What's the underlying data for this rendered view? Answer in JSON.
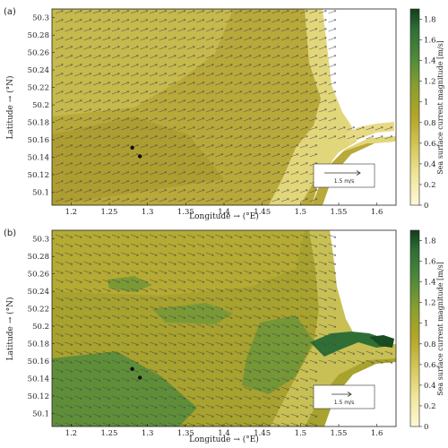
{
  "chart_data": [
    {
      "type": "heatmap",
      "panel_label": "(a)",
      "title": "",
      "xlabel": "Longitude → (°E)",
      "ylabel": "Latitude → (°N)",
      "colorbar_label": "Sea surface current magnitude [m/s]",
      "xlim": [
        1.175,
        1.625
      ],
      "ylim": [
        50.085,
        50.31
      ],
      "x_ticks": [
        "1.2",
        "1.25",
        "1.3",
        "1.35",
        "1.4",
        "1.45",
        "1.5",
        "1.55",
        "1.6"
      ],
      "y_ticks": [
        "50.1",
        "50.12",
        "50.14",
        "50.16",
        "50.18",
        "50.2",
        "50.22",
        "50.24",
        "50.26",
        "50.28",
        "50.3"
      ],
      "colorbar_ticks": [
        "0",
        "0.2",
        "0.4",
        "0.6",
        "0.8",
        "1",
        "1.2",
        "1.4",
        "1.6",
        "1.8"
      ],
      "colorbar_range": [
        0,
        1.9
      ],
      "key_arrow_label": "1.5 m/s",
      "typical_magnitude": 0.55,
      "flow_direction_deg": 20,
      "points": [
        [
          1.28,
          50.151
        ],
        [
          1.29,
          50.141
        ]
      ]
    },
    {
      "type": "heatmap",
      "panel_label": "(b)",
      "title": "",
      "xlabel": "Longitude → (°E)",
      "ylabel": "Latitude → (°N)",
      "colorbar_label": "Sea surface current magnitude [m/s]",
      "xlim": [
        1.175,
        1.625
      ],
      "ylim": [
        50.085,
        50.31
      ],
      "x_ticks": [
        "1.2",
        "1.25",
        "1.3",
        "1.35",
        "1.4",
        "1.45",
        "1.5",
        "1.55",
        "1.6"
      ],
      "y_ticks": [
        "50.1",
        "50.12",
        "50.14",
        "50.16",
        "50.18",
        "50.2",
        "50.22",
        "50.24",
        "50.26",
        "50.28",
        "50.3"
      ],
      "colorbar_ticks": [
        "0",
        "0.2",
        "0.4",
        "0.6",
        "0.8",
        "1",
        "1.2",
        "1.4",
        "1.6",
        "1.8"
      ],
      "colorbar_range": [
        0,
        1.9
      ],
      "key_arrow_label": "1.5 m/s",
      "typical_magnitude": 0.75,
      "flow_direction_deg": -20,
      "points": [
        [
          1.28,
          50.151
        ],
        [
          1.29,
          50.141
        ]
      ]
    }
  ],
  "colors": {
    "land": "#ffffff",
    "low": "#fbf4c4",
    "mid": "#b3a628",
    "high": "#2e6e35",
    "arrow": "#4a4a4a"
  }
}
